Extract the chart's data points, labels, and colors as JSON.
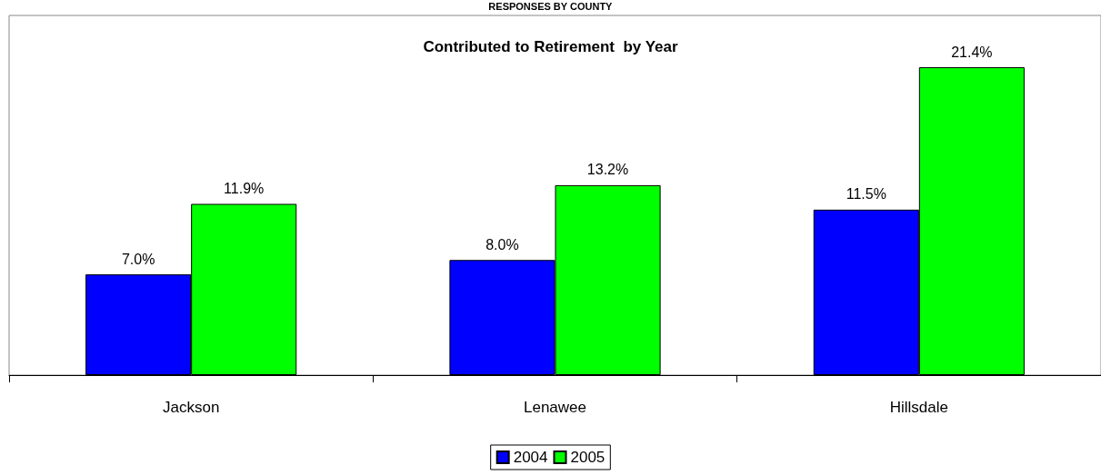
{
  "chart_data": {
    "type": "bar",
    "title": "Contributed to Retirement  by Year",
    "annotations": [
      "RESPONSES BY COUNTY"
    ],
    "categories": [
      "Jackson",
      "Lenawee",
      "Hillsdale"
    ],
    "series": [
      {
        "name": "2004",
        "color": "#0000ff",
        "values": [
          7.0,
          8.0,
          11.5
        ],
        "value_labels": [
          "7.0%",
          "8.0%",
          "11.5%"
        ]
      },
      {
        "name": "2005",
        "color": "#00ff00",
        "values": [
          11.9,
          13.2,
          21.4
        ],
        "value_labels": [
          "11.9%",
          "13.2%",
          "21.4%"
        ]
      }
    ],
    "ylim": [
      0,
      25
    ],
    "tick_labels": "x",
    "grid": false,
    "legend": "bottom"
  }
}
